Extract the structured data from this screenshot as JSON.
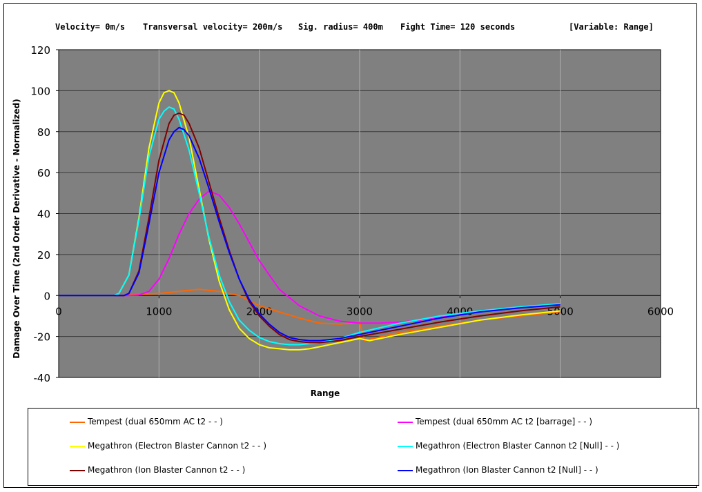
{
  "header": {
    "velocity": "Velocity= 0m/s",
    "transversal": "Transversal velocity= 200m/s",
    "sig_radius": "Sig. radius= 400m",
    "fight_time": "Fight Time= 120 seconds",
    "variable": "[Variable: Range]"
  },
  "chart_data": {
    "type": "line",
    "xlabel": "Range",
    "ylabel": "Damage Over Time (2nd Order Derivative - Normalized)",
    "xlim": [
      0,
      6000
    ],
    "ylim": [
      -40,
      120
    ],
    "xticks": [
      "0",
      "1000",
      "2000",
      "3000",
      "4000",
      "5000",
      "6000"
    ],
    "yticks": [
      "120",
      "100",
      "80",
      "60",
      "40",
      "20",
      "0",
      "-20",
      "-40"
    ],
    "grid": true,
    "plot_background": "#808080",
    "legend_placement": "bottom",
    "series": [
      {
        "name": "Tempest (dual 650mm AC t2 - - )",
        "color": "#ff6600",
        "x": [
          0,
          600,
          800,
          1000,
          1200,
          1400,
          1600,
          1800,
          2000,
          2200,
          2400,
          2600,
          2800,
          3000,
          3050,
          3400,
          3800,
          4200,
          4600,
          5000
        ],
        "y": [
          0,
          0,
          0.5,
          1,
          2,
          3,
          2,
          0,
          -5,
          -8,
          -11,
          -13.5,
          -14,
          -13,
          -22,
          -18,
          -15,
          -12,
          -10,
          -8
        ]
      },
      {
        "name": "Tempest (dual 650mm AC t2 [barrage] - - )",
        "color": "#ff00ff",
        "x": [
          0,
          700,
          800,
          900,
          1000,
          1100,
          1200,
          1300,
          1400,
          1500,
          1600,
          1700,
          1800,
          1900,
          2000,
          2200,
          2400,
          2600,
          2800,
          3000,
          3200,
          3400,
          3600,
          3800,
          4000,
          4400,
          4800,
          5000
        ],
        "y": [
          0,
          0,
          0.3,
          2,
          8,
          18,
          30,
          40,
          47,
          51,
          49,
          43,
          35,
          26,
          17,
          3,
          -5,
          -10,
          -12.5,
          -13.5,
          -13.5,
          -13,
          -12,
          -10.5,
          -9,
          -7,
          -5,
          -4.5
        ]
      },
      {
        "name": "Megathron (Electron Blaster Cannon t2 - - )",
        "color": "#ffff00",
        "x": [
          0,
          550,
          600,
          700,
          800,
          900,
          1000,
          1050,
          1100,
          1150,
          1200,
          1300,
          1400,
          1500,
          1600,
          1700,
          1800,
          1900,
          2000,
          2100,
          2200,
          2300,
          2400,
          2500,
          2600,
          2700,
          2800,
          2900,
          3000,
          3050,
          3100,
          3400,
          3800,
          4200,
          4600,
          5000
        ],
        "y": [
          0,
          0,
          1,
          10,
          38,
          72,
          94,
          99,
          100,
          99,
          94,
          77,
          52,
          27,
          7,
          -7,
          -16,
          -21,
          -24,
          -25.5,
          -26,
          -26.5,
          -26.5,
          -26,
          -25,
          -24,
          -23,
          -22,
          -21,
          -21.5,
          -22,
          -19,
          -15.5,
          -12,
          -9.5,
          -7.5
        ]
      },
      {
        "name": "Megathron (Electron Blaster Cannon t2 [Null] - - )",
        "color": "#00ffff",
        "x": [
          0,
          550,
          600,
          700,
          800,
          900,
          1000,
          1050,
          1100,
          1150,
          1200,
          1300,
          1400,
          1500,
          1600,
          1700,
          1800,
          1900,
          2000,
          2100,
          2200,
          2300,
          2400,
          2500,
          2600,
          2800,
          3000,
          3400,
          3800,
          4200,
          4600,
          5000
        ],
        "y": [
          0,
          0,
          1,
          10,
          37,
          68,
          86,
          90,
          92,
          91,
          86,
          71,
          50,
          28,
          10,
          -3,
          -12,
          -17,
          -20.5,
          -22.5,
          -23.5,
          -24,
          -24,
          -23.5,
          -23,
          -21,
          -18,
          -13.5,
          -10,
          -7.5,
          -5.5,
          -4
        ]
      },
      {
        "name": "Megathron (Ion Blaster Cannon t2 - - )",
        "color": "#800000",
        "x": [
          0,
          650,
          700,
          800,
          900,
          1000,
          1100,
          1150,
          1200,
          1250,
          1300,
          1400,
          1500,
          1600,
          1700,
          1800,
          1900,
          2000,
          2100,
          2200,
          2300,
          2400,
          2500,
          2600,
          2800,
          3000,
          3400,
          3800,
          4200,
          4600,
          5000
        ],
        "y": [
          0,
          0,
          1,
          12,
          38,
          66,
          84,
          88,
          89,
          88,
          84,
          72,
          55,
          38,
          22,
          8,
          -3,
          -10,
          -15,
          -19,
          -21.5,
          -22.5,
          -23,
          -23,
          -22,
          -20,
          -16.5,
          -13,
          -10,
          -7.5,
          -5.5
        ]
      },
      {
        "name": "Megathron (Ion Blaster Cannon t2 [Null] - - )",
        "color": "#0000ff",
        "x": [
          0,
          650,
          700,
          800,
          900,
          1000,
          1100,
          1150,
          1200,
          1250,
          1300,
          1400,
          1500,
          1600,
          1700,
          1800,
          1900,
          2000,
          2100,
          2200,
          2300,
          2400,
          2500,
          2600,
          2800,
          3000,
          3400,
          3800,
          4200,
          4600,
          5000
        ],
        "y": [
          0,
          0,
          1,
          11,
          35,
          60,
          76,
          80,
          82,
          81,
          78,
          67,
          52,
          36,
          21,
          8,
          -2,
          -9,
          -14,
          -18,
          -20.5,
          -21.5,
          -22,
          -22,
          -21,
          -19,
          -15,
          -11,
          -8,
          -6,
          -4.5
        ]
      }
    ]
  }
}
